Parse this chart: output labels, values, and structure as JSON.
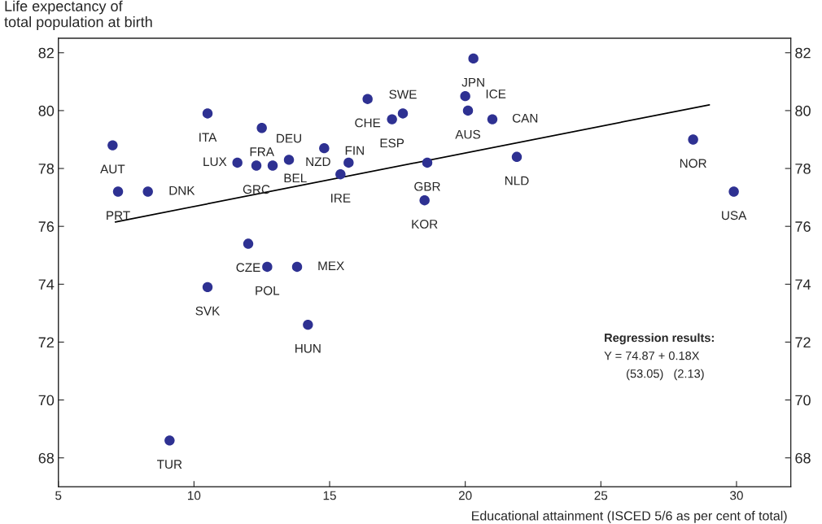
{
  "chart_data": {
    "type": "scatter",
    "ylabel": "Life expectancy of\ntotal population at birth",
    "xlabel": "Educational attainment (ISCED 5/6 as per cent of total)",
    "xlim": [
      5,
      32
    ],
    "xticks": [
      5,
      10,
      15,
      20,
      25,
      30
    ],
    "ylim": [
      67,
      82.5
    ],
    "yticks": [
      68,
      70,
      72,
      74,
      76,
      78,
      80,
      82
    ],
    "y2lim": [
      67,
      82.5
    ],
    "y2ticks": [
      68,
      70,
      72,
      74,
      76,
      78,
      80,
      82
    ],
    "series": [
      {
        "color": "#2e3192",
        "marker": "circle",
        "x": [
          7.0,
          7.2,
          8.3,
          10.5,
          11.6,
          12.3,
          12.5,
          12.9,
          13.5,
          12.0,
          12.7,
          13.8,
          10.5,
          14.2,
          9.1,
          14.8,
          15.7,
          15.4,
          16.4,
          17.3,
          17.7,
          18.6,
          18.5,
          20.3,
          20.0,
          20.1,
          21.0,
          21.9,
          28.4,
          29.9
        ],
        "values": [
          78.8,
          77.2,
          77.2,
          79.9,
          78.2,
          78.1,
          79.4,
          78.1,
          78.3,
          75.4,
          74.6,
          74.6,
          73.9,
          72.6,
          68.6,
          78.7,
          78.2,
          77.8,
          80.4,
          79.7,
          79.9,
          78.2,
          76.9,
          81.8,
          80.5,
          80.0,
          79.7,
          78.4,
          79.0,
          77.2
        ]
      },
      {
        "type": "line",
        "color": "#000000",
        "x": [
          7.1,
          29.0
        ],
        "values": [
          76.15,
          80.2
        ]
      }
    ],
    "annotations": [
      {
        "text": "AUT",
        "x": 7.0,
        "y": 78.8
      },
      {
        "text": "PRT",
        "x": 7.2,
        "y": 77.2
      },
      {
        "text": "DNK",
        "x": 8.3,
        "y": 77.2
      },
      {
        "text": "ITA",
        "x": 10.5,
        "y": 79.9
      },
      {
        "text": "LUX",
        "x": 11.6,
        "y": 78.2
      },
      {
        "text": "GRC",
        "x": 12.3,
        "y": 78.1
      },
      {
        "text": "FRA",
        "x": 12.5,
        "y": 79.4
      },
      {
        "text": "BEL",
        "x": 12.9,
        "y": 78.1
      },
      {
        "text": "DEU",
        "x": 13.5,
        "y": 78.3
      },
      {
        "text": "CZE",
        "x": 12.0,
        "y": 75.4
      },
      {
        "text": "POL",
        "x": 12.7,
        "y": 74.6
      },
      {
        "text": "MEX",
        "x": 13.8,
        "y": 74.6
      },
      {
        "text": "SVK",
        "x": 10.5,
        "y": 73.9
      },
      {
        "text": "HUN",
        "x": 14.2,
        "y": 72.6
      },
      {
        "text": "TUR",
        "x": 9.1,
        "y": 68.6
      },
      {
        "text": "FIN",
        "x": 14.8,
        "y": 78.7
      },
      {
        "text": "NZD",
        "x": 15.7,
        "y": 78.2
      },
      {
        "text": "IRE",
        "x": 15.4,
        "y": 77.8
      },
      {
        "text": "CHE",
        "x": 16.4,
        "y": 80.4
      },
      {
        "text": "ESP",
        "x": 17.3,
        "y": 79.7
      },
      {
        "text": "SWE",
        "x": 17.7,
        "y": 79.9
      },
      {
        "text": "GBR",
        "x": 18.6,
        "y": 78.2
      },
      {
        "text": "KOR",
        "x": 18.5,
        "y": 76.9
      },
      {
        "text": "JPN",
        "x": 20.3,
        "y": 81.8
      },
      {
        "text": "ICE",
        "x": 20.0,
        "y": 80.5
      },
      {
        "text": "AUS",
        "x": 20.1,
        "y": 80.0
      },
      {
        "text": "CAN",
        "x": 21.0,
        "y": 79.7
      },
      {
        "text": "NLD",
        "x": 21.9,
        "y": 78.4
      },
      {
        "text": "NOR",
        "x": 28.4,
        "y": 79.0
      },
      {
        "text": "USA",
        "x": 29.9,
        "y": 77.2
      },
      "Regression results:",
      "Y = 74.87 + 0.18X",
      "(53.05)   (2.13)"
    ]
  }
}
